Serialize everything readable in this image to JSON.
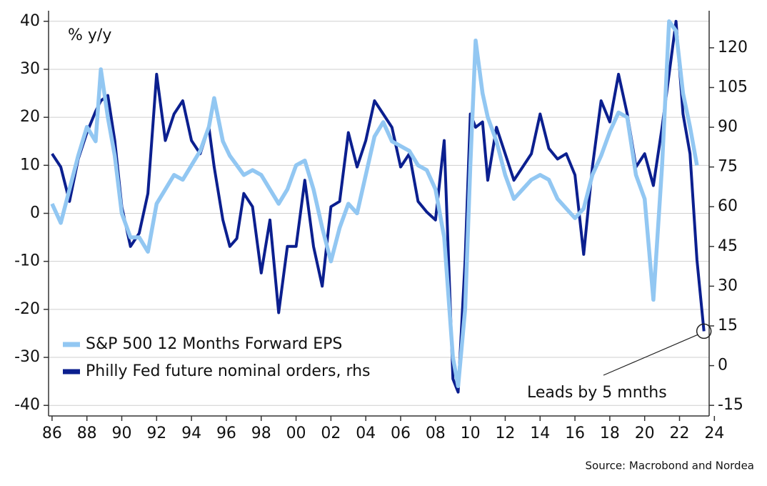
{
  "chart_data": {
    "type": "line",
    "y_label": "% y/y",
    "annotation": "Leads by 5 mnths",
    "source": "Source: Macrobond and Nordea",
    "legend": "lower left",
    "grid": true,
    "xlim": [
      1985.8,
      2023.7
    ],
    "ylim": [
      -42.2,
      42.2
    ],
    "y2lim": [
      -19,
      134
    ],
    "xticks": [
      {
        "value": 1986,
        "label": "86"
      },
      {
        "value": 1988,
        "label": "88"
      },
      {
        "value": 1990,
        "label": "90"
      },
      {
        "value": 1992,
        "label": "92"
      },
      {
        "value": 1994,
        "label": "94"
      },
      {
        "value": 1996,
        "label": "96"
      },
      {
        "value": 1998,
        "label": "98"
      },
      {
        "value": 2000,
        "label": "00"
      },
      {
        "value": 2002,
        "label": "02"
      },
      {
        "value": 2004,
        "label": "04"
      },
      {
        "value": 2006,
        "label": "06"
      },
      {
        "value": 2008,
        "label": "08"
      },
      {
        "value": 2010,
        "label": "10"
      },
      {
        "value": 2012,
        "label": "12"
      },
      {
        "value": 2014,
        "label": "14"
      },
      {
        "value": 2016,
        "label": "16"
      },
      {
        "value": 2018,
        "label": "18"
      },
      {
        "value": 2020,
        "label": "20"
      },
      {
        "value": 2022,
        "label": "22"
      },
      {
        "value": 2024,
        "label": "24"
      }
    ],
    "yticks": [
      40,
      30,
      20,
      10,
      0,
      -10,
      -20,
      -30,
      -40
    ],
    "y2ticks": [
      120,
      105,
      90,
      75,
      60,
      45,
      30,
      15,
      0,
      -15
    ],
    "x": [
      1986,
      1986.5,
      1987,
      1987.5,
      1988,
      1988.5,
      1988.8,
      1989.2,
      1989.6,
      1990,
      1990.5,
      1991,
      1991.5,
      1992,
      1992.5,
      1993,
      1993.5,
      1994,
      1994.5,
      1995,
      1995.3,
      1995.8,
      1996.2,
      1996.6,
      1997,
      1997.5,
      1998,
      1998.5,
      1999,
      1999.5,
      2000,
      2000.5,
      2001,
      2001.5,
      2002,
      2002.5,
      2003,
      2003.5,
      2004,
      2004.5,
      2005,
      2005.5,
      2006,
      2006.5,
      2007,
      2007.5,
      2008,
      2008.5,
      2009,
      2009.3,
      2009.7,
      2010,
      2010.3,
      2010.7,
      2011,
      2011.5,
      2012,
      2012.5,
      2013,
      2013.5,
      2014,
      2014.5,
      2015,
      2015.5,
      2016,
      2016.5,
      2017,
      2017.5,
      2018,
      2018.5,
      2019,
      2019.5,
      2020,
      2020.5,
      2021,
      2021.4,
      2021.8,
      2022.2,
      2022.6,
      2023,
      2023.4
    ],
    "series": [
      {
        "name": "Philly Fed future nominal orders, rhs",
        "color": "#0b1f8f",
        "axis": "y2",
        "values": [
          80,
          75,
          62,
          78,
          88,
          96,
          100,
          102,
          85,
          60,
          45,
          50,
          65,
          110,
          85,
          95,
          100,
          85,
          80,
          90,
          75,
          55,
          45,
          48,
          65,
          60,
          35,
          55,
          20,
          45,
          45,
          70,
          45,
          30,
          60,
          62,
          88,
          75,
          85,
          100,
          95,
          90,
          75,
          80,
          62,
          58,
          55,
          85,
          -5,
          -10,
          40,
          95,
          90,
          92,
          70,
          90,
          80,
          70,
          75,
          80,
          95,
          82,
          78,
          80,
          72,
          42,
          75,
          100,
          92,
          110,
          95,
          75,
          80,
          68,
          90,
          110,
          130,
          95,
          80,
          40,
          13
        ]
      },
      {
        "name": "S&P 500 12 Months Forward EPS",
        "color": "#92c7f2",
        "values": [
          2,
          -2,
          5,
          12,
          18,
          15,
          30,
          20,
          12,
          0,
          -5,
          -5,
          -8,
          2,
          5,
          8,
          7,
          10,
          13,
          18,
          24,
          15,
          12,
          10,
          8,
          9,
          8,
          5,
          2,
          5,
          10,
          11,
          5,
          -3,
          -10,
          -3,
          2,
          0,
          8,
          16,
          19,
          15,
          14,
          13,
          10,
          9,
          5,
          -5,
          -30,
          -36,
          -20,
          10,
          36,
          25,
          20,
          15,
          8,
          3,
          5,
          7,
          8,
          7,
          3,
          1,
          -1,
          1,
          8,
          12,
          17,
          21,
          20,
          8,
          3,
          -18,
          10,
          40,
          38,
          25,
          18,
          10,
          null
        ]
      }
    ]
  }
}
